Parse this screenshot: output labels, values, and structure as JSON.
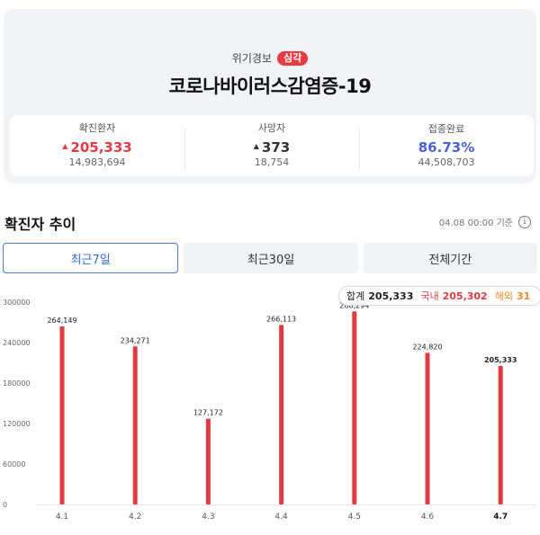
{
  "alert": {
    "label": "위기경보",
    "level": "심각"
  },
  "disease_title": "코로나바이러스감염증-19",
  "stats": [
    {
      "label": "확진환자",
      "delta_icon": "up-triangle-icon",
      "value": "205,333",
      "total": "14,983,694"
    },
    {
      "label": "사망자",
      "delta_icon": "up-triangle-icon",
      "value": "373",
      "total": "18,754"
    },
    {
      "label": "접종완료",
      "value": "86.73%",
      "total": "44,508,703"
    }
  ],
  "section_title": "확진자 추이",
  "basis_time": "04.08 00:00 기준",
  "info_icon": "info-icon",
  "tabs": [
    {
      "label": "최근7일",
      "active": true
    },
    {
      "label": "최근30일",
      "active": false
    },
    {
      "label": "전체기간",
      "active": false
    }
  ],
  "tooltip": {
    "total_label": "합계",
    "total_value": "205,333",
    "domestic_label": "국내",
    "domestic_value": "205,302",
    "overseas_label": "해외",
    "overseas_value": "31"
  },
  "colors": {
    "bar": "#e53a40",
    "accent_blue": "#3468dc",
    "tooltip_overseas": "#f08a24"
  },
  "chart_data": {
    "type": "bar",
    "categories": [
      "4.1",
      "4.2",
      "4.3",
      "4.4",
      "4.5",
      "4.6",
      "4.7"
    ],
    "values": [
      264149,
      234271,
      127172,
      266113,
      286294,
      224820,
      205333
    ],
    "data_labels": [
      "264,149",
      "234,271",
      "127,172",
      "266,113",
      "286,294",
      "224,820",
      "205,333"
    ],
    "yticks": [
      0,
      60000,
      120000,
      180000,
      240000,
      300000
    ],
    "ylim": [
      0,
      300000
    ],
    "highlight_index": 6,
    "title": "",
    "xlabel": "",
    "ylabel": "",
    "grid": false,
    "legend": "none"
  }
}
